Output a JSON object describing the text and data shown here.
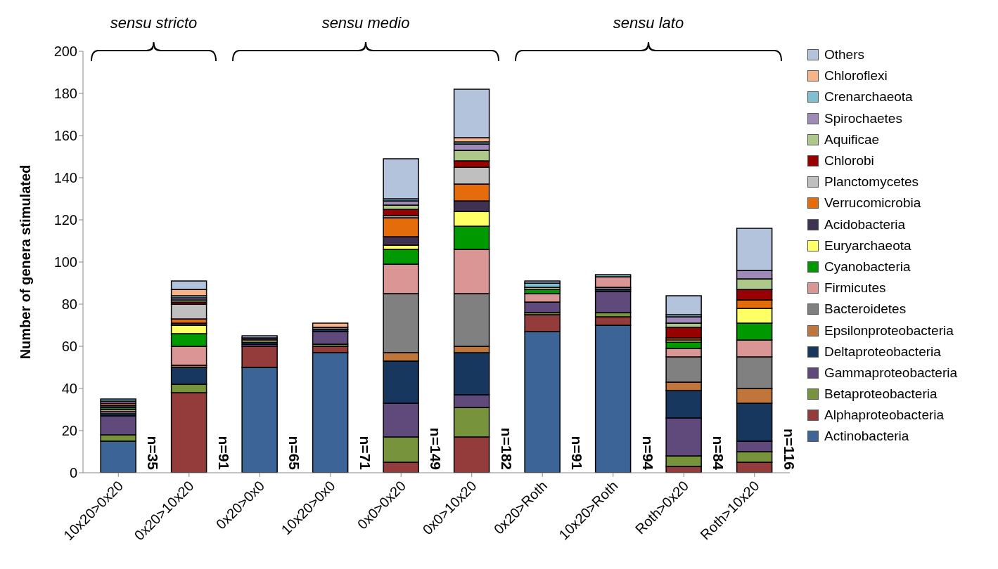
{
  "chart_data": {
    "type": "bar",
    "stacked": true,
    "ylabel": "Number of genera stimulated",
    "categories": [
      "10x20>0x20",
      "0x20>10x20",
      "0x20>0x0",
      "10x20>0x0",
      "0x0>0x20",
      "0x0>10x20",
      "0x20>Roth",
      "10x20>Roth",
      "Roth>0x20",
      "Roth>10x20"
    ],
    "ylim": [
      0,
      200
    ],
    "yticks": [
      0,
      20,
      40,
      60,
      80,
      100,
      120,
      140,
      160,
      180,
      200
    ],
    "legend": "right",
    "annotations": [
      "sensu stricto",
      "sensu medio",
      "sensu lato"
    ],
    "totals": [
      "n=35",
      "n=91",
      "n=65",
      "n=71",
      "n=149",
      "n=182",
      "n=91",
      "n=94",
      "n=84",
      "n=116"
    ],
    "series": [
      {
        "name": "Actinobacteria",
        "color": "#3c6496",
        "values": [
          15,
          0,
          50,
          57,
          0,
          0,
          67,
          70,
          0,
          0
        ]
      },
      {
        "name": "Alphaproteobacteria",
        "color": "#943c3c",
        "values": [
          0,
          38,
          10,
          3,
          5,
          17,
          8,
          4,
          3,
          5
        ]
      },
      {
        "name": "Betaproteobacteria",
        "color": "#77933c",
        "values": [
          3,
          4,
          0,
          1,
          12,
          14,
          1,
          2,
          5,
          5
        ]
      },
      {
        "name": "Gammaproteobacteria",
        "color": "#604a7b",
        "values": [
          9,
          0,
          1,
          6,
          16,
          6,
          5,
          10,
          18,
          5
        ]
      },
      {
        "name": "Deltaproteobacteria",
        "color": "#17375e",
        "values": [
          1,
          8,
          1,
          1,
          20,
          20,
          0,
          1,
          13,
          18
        ]
      },
      {
        "name": "Epsilonproteobacteria",
        "color": "#c0763a",
        "values": [
          0,
          1,
          0,
          0,
          4,
          3,
          0,
          0,
          4,
          7
        ]
      },
      {
        "name": "Bacteroidetes",
        "color": "#808080",
        "values": [
          1,
          0,
          0,
          1,
          28,
          25,
          0,
          1,
          12,
          15
        ]
      },
      {
        "name": "Firmicutes",
        "color": "#d99694",
        "values": [
          1,
          9,
          0,
          0,
          14,
          21,
          4,
          5,
          4,
          8
        ]
      },
      {
        "name": "Cyanobacteria",
        "color": "#009900",
        "values": [
          1,
          6,
          0,
          0,
          7,
          11,
          2,
          0,
          3,
          8
        ]
      },
      {
        "name": "Euryarchaeota",
        "color": "#ffff66",
        "values": [
          0,
          4,
          1,
          0,
          2,
          7,
          0,
          0,
          1,
          7
        ]
      },
      {
        "name": "Acidobacteria",
        "color": "#3f3151",
        "values": [
          1,
          1,
          1,
          0,
          4,
          5,
          0,
          0,
          0,
          0
        ]
      },
      {
        "name": "Verrucomicrobia",
        "color": "#e46c0a",
        "values": [
          1,
          2,
          0,
          0,
          9,
          8,
          0,
          0,
          1,
          4
        ]
      },
      {
        "name": "Planctomycetes",
        "color": "#bfbfbf",
        "values": [
          0,
          7,
          0,
          0,
          1,
          8,
          0,
          0,
          0,
          0
        ]
      },
      {
        "name": "Chlorobi",
        "color": "#990000",
        "values": [
          0,
          1,
          0,
          0,
          3,
          3,
          0,
          0,
          5,
          5
        ]
      },
      {
        "name": "Aquificae",
        "color": "#aec88a",
        "values": [
          0,
          1,
          0,
          0,
          2,
          5,
          1,
          0,
          2,
          5
        ]
      },
      {
        "name": "Spirochaetes",
        "color": "#9f8ab8",
        "values": [
          1,
          1,
          0,
          0,
          2,
          3,
          0,
          0,
          3,
          4
        ]
      },
      {
        "name": "Crenarchaeota",
        "color": "#7fbfd2",
        "values": [
          1,
          1,
          0,
          0,
          1,
          1,
          2,
          1,
          1,
          0
        ]
      },
      {
        "name": "Chloroflexi",
        "color": "#fab287",
        "values": [
          0,
          3,
          0,
          2,
          0,
          2,
          0,
          0,
          0,
          0
        ]
      },
      {
        "name": "Others",
        "color": "#b4c3dc",
        "values": [
          0,
          4,
          1,
          0,
          19,
          23,
          1,
          0,
          9,
          20
        ]
      }
    ]
  }
}
